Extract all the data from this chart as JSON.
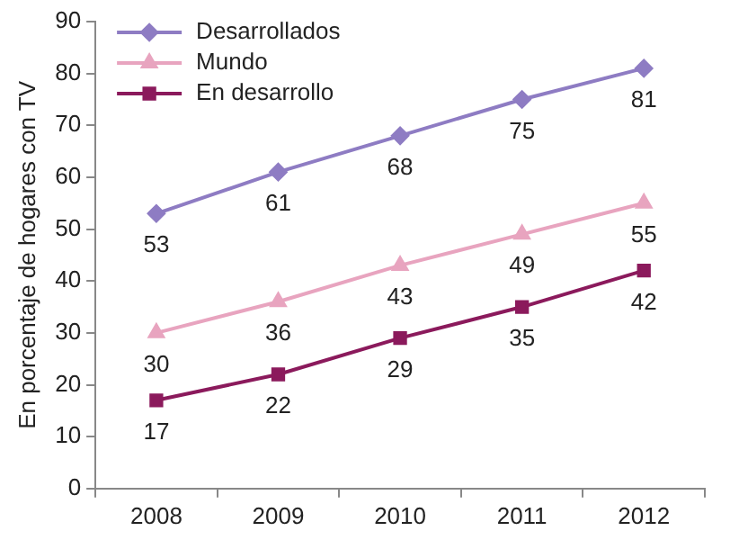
{
  "chart_data": {
    "type": "line",
    "ylabel": "En porcentaje de hogares con TV",
    "categories": [
      "2008",
      "2009",
      "2010",
      "2011",
      "2012"
    ],
    "series": [
      {
        "name": "Desarrollados",
        "color": "#8e7cc3",
        "marker": "diamond",
        "values": [
          53,
          61,
          68,
          75,
          81
        ]
      },
      {
        "name": "Mundo",
        "color": "#e8a4bf",
        "marker": "triangle",
        "values": [
          30,
          36,
          43,
          49,
          55
        ]
      },
      {
        "name": "En desarrollo",
        "color": "#8b1a5c",
        "marker": "square",
        "values": [
          17,
          22,
          29,
          35,
          42
        ]
      }
    ],
    "ylim": [
      0,
      90
    ],
    "yticks": [
      0,
      10,
      20,
      30,
      40,
      50,
      60,
      70,
      80,
      90
    ],
    "grid": false,
    "legend": "top left",
    "data_labels": true,
    "line_style": "solid"
  }
}
